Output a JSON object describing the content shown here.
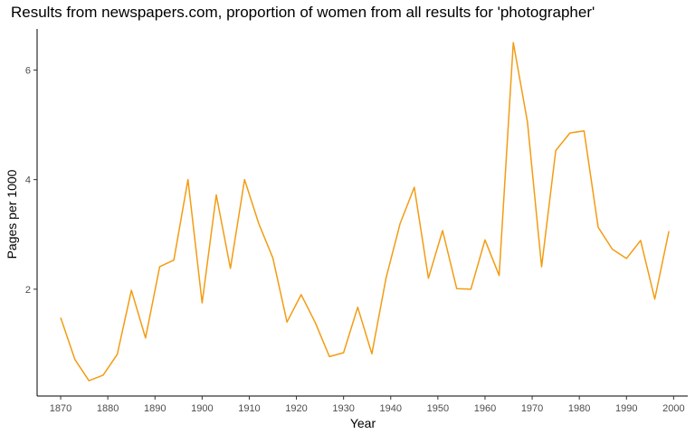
{
  "chart_data": {
    "type": "line",
    "title": "Results from newspapers.com, proportion of women from all results for 'photographer'",
    "xlabel": "Year",
    "ylabel": "Pages per 1000",
    "xlim": [
      1865,
      2003
    ],
    "ylim": [
      0.05,
      6.75
    ],
    "x_ticks": [
      1870,
      1880,
      1890,
      1900,
      1910,
      1920,
      1930,
      1940,
      1950,
      1960,
      1970,
      1980,
      1990,
      2000
    ],
    "y_ticks": [
      2,
      4,
      6
    ],
    "grid": false,
    "series": [
      {
        "color": "#f39c12",
        "x": [
          1870,
          1873,
          1876,
          1879,
          1882,
          1885,
          1888,
          1891,
          1894,
          1897,
          1900,
          1903,
          1906,
          1909,
          1912,
          1915,
          1918,
          1921,
          1924,
          1927,
          1930,
          1933,
          1936,
          1939,
          1942,
          1945,
          1948,
          1951,
          1954,
          1957,
          1960,
          1963,
          1966,
          1969,
          1972,
          1975,
          1978,
          1981,
          1984,
          1987,
          1990,
          1993,
          1996,
          1999
        ],
        "y": [
          1.48,
          0.72,
          0.33,
          0.43,
          0.81,
          1.98,
          1.11,
          2.41,
          2.53,
          4.0,
          1.75,
          3.72,
          2.38,
          4.0,
          3.2,
          2.57,
          1.4,
          1.9,
          1.39,
          0.77,
          0.84,
          1.67,
          0.82,
          2.2,
          3.2,
          3.86,
          2.2,
          3.07,
          2.01,
          2.0,
          2.9,
          2.25,
          6.5,
          5.05,
          2.41,
          4.53,
          4.85,
          4.89,
          3.13,
          2.73,
          2.56,
          2.89,
          1.82,
          3.06
        ]
      }
    ]
  }
}
